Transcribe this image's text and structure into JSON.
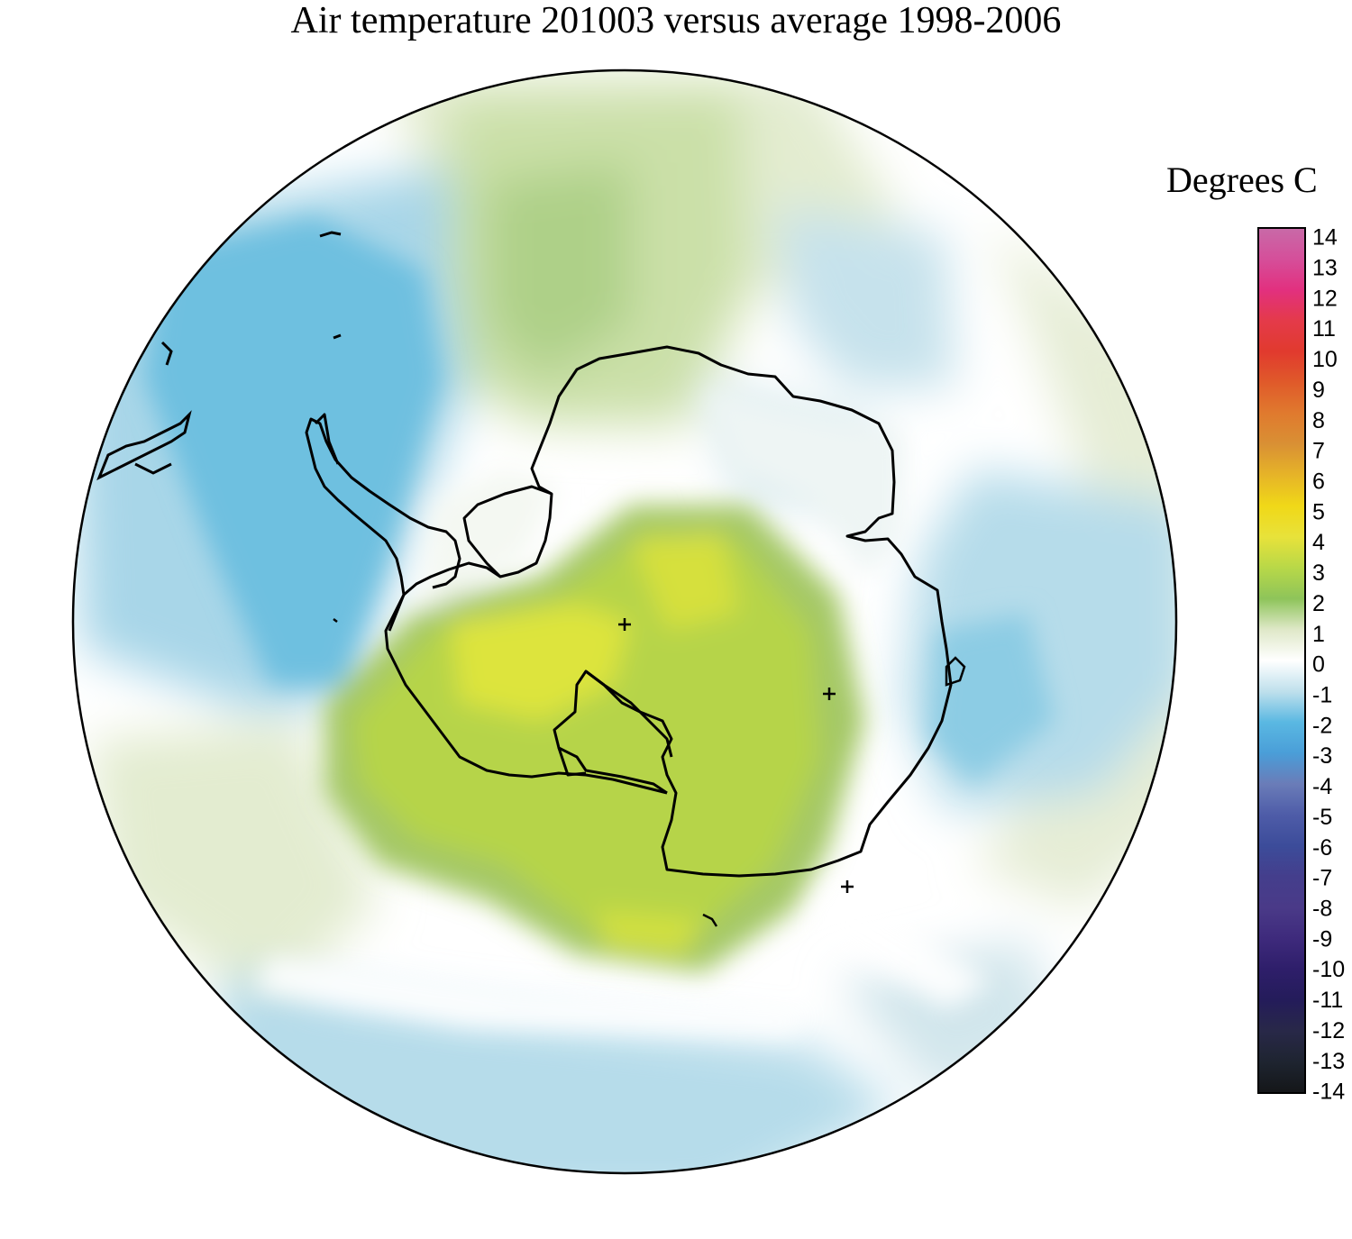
{
  "title": "Air temperature 201003 versus average 1998-2006",
  "legend": {
    "title": "Degrees C",
    "ticks": [
      "14",
      "13",
      "12",
      "11",
      "10",
      "9",
      "8",
      "7",
      "6",
      "5",
      "4",
      "3",
      "2",
      "1",
      "0",
      "-1",
      "-2",
      "-3",
      "-4",
      "-5",
      "-6",
      "-7",
      "-8",
      "-9",
      "-10",
      "-11",
      "-12",
      "-13",
      "-14"
    ],
    "colors": {
      "14": "#c86aa8",
      "13": "#d54f9a",
      "12": "#e2307f",
      "11": "#e43a4a",
      "10": "#e13a2e",
      "9": "#e05a2a",
      "8": "#e07a2e",
      "7": "#d99034",
      "6": "#e6b428",
      "5": "#f0d818",
      "4": "#e8e23a",
      "3": "#b8d848",
      "2": "#8ec45a",
      "1": "#dfe8c8",
      "0": "#ffffff",
      "-1": "#bfe0ec",
      "-2": "#5ab8e2",
      "-3": "#4a9ed8",
      "-4": "#6a7cb8",
      "-5": "#4e5ca8",
      "-6": "#3c4c9a",
      "-7": "#443e8c",
      "-8": "#4a3a88",
      "-9": "#3e2a7c",
      "-10": "#2e1e6a",
      "-11": "#241c5a",
      "-12": "#282848",
      "-13": "#1e2430",
      "-14": "#141618"
    }
  },
  "map_colors": {
    "ocean_blue_dark": "#6ec0e0",
    "ocean_blue": "#a6d6e8",
    "ocean_blue_light": "#cfe7ee",
    "pale_green": "#e8efd8",
    "light_green": "#cfdfae",
    "green": "#a8cc7c",
    "yellow_green": "#b8d448",
    "yellow": "#e4e43c"
  }
}
